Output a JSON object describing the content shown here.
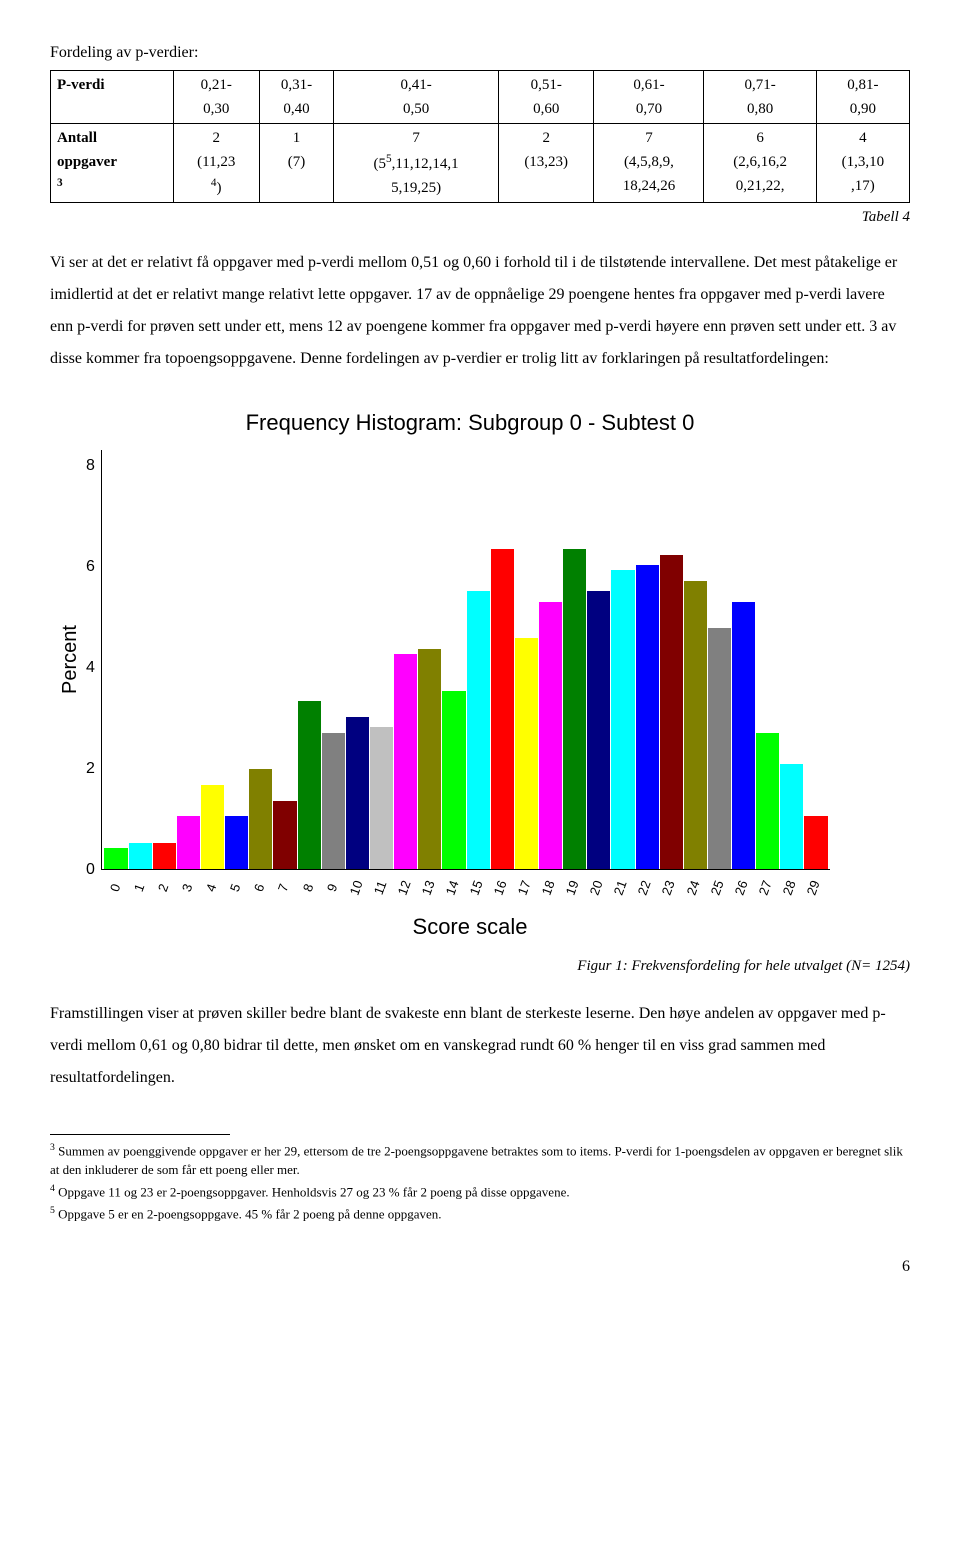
{
  "title": "Fordeling av p-verdier:",
  "table": {
    "rowhead1": "P-verdi",
    "rowhead2_line1": "Antall",
    "rowhead2_line2": "oppgaver",
    "rowhead2_sup": "3",
    "cols": [
      {
        "range_a": "0,21-",
        "range_b": "0,30",
        "count": "2",
        "detail": "(11,23",
        "sup": "4",
        "detail_b": ")"
      },
      {
        "range_a": "0,31-",
        "range_b": "0,40",
        "count": "1",
        "detail": "(7)",
        "sup": "",
        "detail_b": ""
      },
      {
        "range_a": "0,41-",
        "range_b": "0,50",
        "count": "7",
        "detail": "(5",
        "sup": "5",
        "detail_b": ",11,12,14,1",
        "detail_c": "5,19,25)"
      },
      {
        "range_a": "0,51-",
        "range_b": "0,60",
        "count": "2",
        "detail": "(13,23)",
        "sup": "",
        "detail_b": ""
      },
      {
        "range_a": "0,61-",
        "range_b": "0,70",
        "count": "7",
        "detail": "(4,5,8,9,",
        "sup": "",
        "detail_b": "18,24,26"
      },
      {
        "range_a": "0,71-",
        "range_b": "0,80",
        "count": "6",
        "detail": "(2,6,16,2",
        "sup": "",
        "detail_b": "0,21,22,"
      },
      {
        "range_a": "0,81-",
        "range_b": "0,90",
        "count": "4",
        "detail": "(1,3,10",
        "sup": "",
        "detail_b": ",17)"
      }
    ],
    "caption": "Tabell 4"
  },
  "para1": "Vi ser at det er relativt få oppgaver med p-verdi mellom 0,51 og 0,60 i forhold til i de tilstøtende intervallene. Det mest påtakelige er imidlertid at det er relativt mange relativt lette oppgaver. 17 av de oppnåelige 29 poengene hentes fra oppgaver med p-verdi lavere enn p-verdi for prøven sett under ett, mens 12 av poengene kommer fra oppgaver med p-verdi høyere enn prøven sett under ett. 3 av disse kommer fra topoengsoppgavene. Denne fordelingen av p-verdier er trolig litt av forklaringen på resultatfordelingen:",
  "chart": {
    "type": "bar",
    "title": "Frequency Histogram:  Subgroup 0 - Subtest 0",
    "ylabel": "Percent",
    "xlabel": "Score scale",
    "ymax": 8,
    "yticks": [
      "8",
      "6",
      "4",
      "2",
      "0"
    ],
    "categories": [
      "0",
      "1",
      "2",
      "3",
      "4",
      "5",
      "6",
      "7",
      "8",
      "9",
      "10",
      "11",
      "12",
      "13",
      "14",
      "15",
      "16",
      "17",
      "18",
      "19",
      "20",
      "21",
      "22",
      "23",
      "24",
      "25",
      "26",
      "27",
      "28",
      "29"
    ],
    "values": [
      0.4,
      0.5,
      0.5,
      1.0,
      1.6,
      1.0,
      1.9,
      1.3,
      3.2,
      2.6,
      2.9,
      2.7,
      4.1,
      4.2,
      3.4,
      5.3,
      6.1,
      4.4,
      5.1,
      6.1,
      5.3,
      5.7,
      5.8,
      6.0,
      5.5,
      4.6,
      5.1,
      2.6,
      2.0,
      1.0
    ],
    "colors": [
      "#00ff00",
      "#00ffff",
      "#ff0000",
      "#ff00ff",
      "#ffff00",
      "#0000ff",
      "#808000",
      "#800000",
      "#008000",
      "#808080",
      "#000080",
      "#c0c0c0",
      "#ff00ff",
      "#808000",
      "#00ff00",
      "#00ffff",
      "#ff0000",
      "#ffff00",
      "#ff00ff",
      "#008000",
      "#000080",
      "#00ffff",
      "#0000ff",
      "#800000",
      "#808000",
      "#808080",
      "#0000ff",
      "#00ff00",
      "#00ffff",
      "#ff0000"
    ],
    "background": "#ffffff",
    "axis_color": "#000000",
    "title_fontsize": 22,
    "label_fontsize": 20,
    "tick_fontsize": 14,
    "caption": "Figur 1: Frekvensfordeling for hele utvalget (N= 1254)"
  },
  "para2": "Framstillingen viser at prøven skiller bedre blant de svakeste enn blant de sterkeste leserne. Den høye andelen av oppgaver med p-verdi mellom 0,61 og 0,80 bidrar til dette, men ønsket om en vanskegrad rundt 60 % henger til en viss grad sammen med resultatfordelingen.",
  "footnotes": {
    "f3_sup": "3",
    "f3": " Summen av poenggivende oppgaver er her 29, ettersom de tre 2-poengsoppgavene betraktes som to items. P-verdi for 1-poengsdelen av oppgaven er beregnet slik at den inkluderer de som får ett poeng eller mer.",
    "f4_sup": "4",
    "f4": " Oppgave 11 og 23 er 2-poengsoppgaver. Henholdsvis 27 og 23 % får 2 poeng på disse oppgavene.",
    "f5_sup": "5",
    "f5": " Oppgave 5 er en 2-poengsoppgave. 45 % får 2 poeng på denne oppgaven."
  },
  "page_number": "6"
}
